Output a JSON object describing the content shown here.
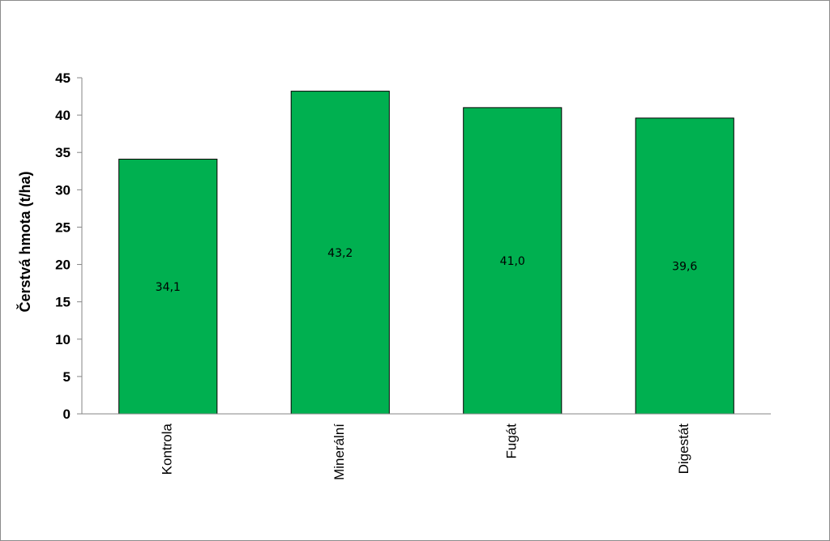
{
  "chart_data": {
    "type": "bar",
    "categories": [
      "Kontrola",
      "Minerální",
      "Fugát",
      "Digestát"
    ],
    "values": [
      34.1,
      43.2,
      41.0,
      39.6
    ],
    "data_labels": [
      "34,1",
      "43,2",
      "41,0",
      "39,6"
    ],
    "title": "",
    "xlabel": "",
    "ylabel": "Čerstvá hmota (t/ha)",
    "ylim": [
      0,
      45
    ],
    "yticks": [
      0,
      5,
      10,
      15,
      20,
      25,
      30,
      35,
      40,
      45
    ],
    "grid": false,
    "legend": "none",
    "bar_color": "#00b050"
  }
}
